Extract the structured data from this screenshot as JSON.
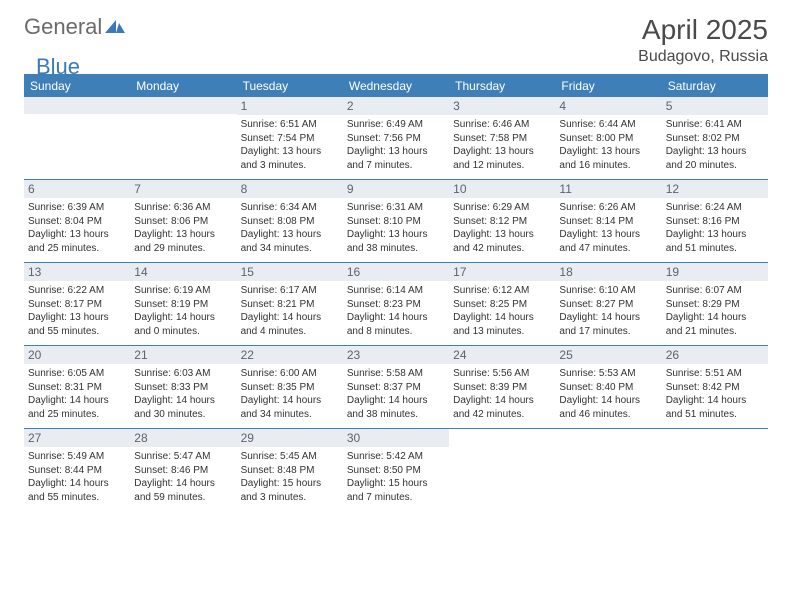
{
  "logo": {
    "general": "General",
    "blue": "Blue",
    "tri_color": "#3a7ab8"
  },
  "title": "April 2025",
  "location": "Budagovo, Russia",
  "colors": {
    "header_bg": "#3f7fb8",
    "daynum_bg": "#e9edf1",
    "rule": "#3f7fb8",
    "text": "#333333",
    "logo_gray": "#6b6b6b",
    "logo_blue": "#3a7ab8"
  },
  "day_names": [
    "Sunday",
    "Monday",
    "Tuesday",
    "Wednesday",
    "Thursday",
    "Friday",
    "Saturday"
  ],
  "weeks": [
    [
      null,
      null,
      {
        "n": "1",
        "sr": "6:51 AM",
        "ss": "7:54 PM",
        "dl": "13 hours and 3 minutes."
      },
      {
        "n": "2",
        "sr": "6:49 AM",
        "ss": "7:56 PM",
        "dl": "13 hours and 7 minutes."
      },
      {
        "n": "3",
        "sr": "6:46 AM",
        "ss": "7:58 PM",
        "dl": "13 hours and 12 minutes."
      },
      {
        "n": "4",
        "sr": "6:44 AM",
        "ss": "8:00 PM",
        "dl": "13 hours and 16 minutes."
      },
      {
        "n": "5",
        "sr": "6:41 AM",
        "ss": "8:02 PM",
        "dl": "13 hours and 20 minutes."
      }
    ],
    [
      {
        "n": "6",
        "sr": "6:39 AM",
        "ss": "8:04 PM",
        "dl": "13 hours and 25 minutes."
      },
      {
        "n": "7",
        "sr": "6:36 AM",
        "ss": "8:06 PM",
        "dl": "13 hours and 29 minutes."
      },
      {
        "n": "8",
        "sr": "6:34 AM",
        "ss": "8:08 PM",
        "dl": "13 hours and 34 minutes."
      },
      {
        "n": "9",
        "sr": "6:31 AM",
        "ss": "8:10 PM",
        "dl": "13 hours and 38 minutes."
      },
      {
        "n": "10",
        "sr": "6:29 AM",
        "ss": "8:12 PM",
        "dl": "13 hours and 42 minutes."
      },
      {
        "n": "11",
        "sr": "6:26 AM",
        "ss": "8:14 PM",
        "dl": "13 hours and 47 minutes."
      },
      {
        "n": "12",
        "sr": "6:24 AM",
        "ss": "8:16 PM",
        "dl": "13 hours and 51 minutes."
      }
    ],
    [
      {
        "n": "13",
        "sr": "6:22 AM",
        "ss": "8:17 PM",
        "dl": "13 hours and 55 minutes."
      },
      {
        "n": "14",
        "sr": "6:19 AM",
        "ss": "8:19 PM",
        "dl": "14 hours and 0 minutes."
      },
      {
        "n": "15",
        "sr": "6:17 AM",
        "ss": "8:21 PM",
        "dl": "14 hours and 4 minutes."
      },
      {
        "n": "16",
        "sr": "6:14 AM",
        "ss": "8:23 PM",
        "dl": "14 hours and 8 minutes."
      },
      {
        "n": "17",
        "sr": "6:12 AM",
        "ss": "8:25 PM",
        "dl": "14 hours and 13 minutes."
      },
      {
        "n": "18",
        "sr": "6:10 AM",
        "ss": "8:27 PM",
        "dl": "14 hours and 17 minutes."
      },
      {
        "n": "19",
        "sr": "6:07 AM",
        "ss": "8:29 PM",
        "dl": "14 hours and 21 minutes."
      }
    ],
    [
      {
        "n": "20",
        "sr": "6:05 AM",
        "ss": "8:31 PM",
        "dl": "14 hours and 25 minutes."
      },
      {
        "n": "21",
        "sr": "6:03 AM",
        "ss": "8:33 PM",
        "dl": "14 hours and 30 minutes."
      },
      {
        "n": "22",
        "sr": "6:00 AM",
        "ss": "8:35 PM",
        "dl": "14 hours and 34 minutes."
      },
      {
        "n": "23",
        "sr": "5:58 AM",
        "ss": "8:37 PM",
        "dl": "14 hours and 38 minutes."
      },
      {
        "n": "24",
        "sr": "5:56 AM",
        "ss": "8:39 PM",
        "dl": "14 hours and 42 minutes."
      },
      {
        "n": "25",
        "sr": "5:53 AM",
        "ss": "8:40 PM",
        "dl": "14 hours and 46 minutes."
      },
      {
        "n": "26",
        "sr": "5:51 AM",
        "ss": "8:42 PM",
        "dl": "14 hours and 51 minutes."
      }
    ],
    [
      {
        "n": "27",
        "sr": "5:49 AM",
        "ss": "8:44 PM",
        "dl": "14 hours and 55 minutes."
      },
      {
        "n": "28",
        "sr": "5:47 AM",
        "ss": "8:46 PM",
        "dl": "14 hours and 59 minutes."
      },
      {
        "n": "29",
        "sr": "5:45 AM",
        "ss": "8:48 PM",
        "dl": "15 hours and 3 minutes."
      },
      {
        "n": "30",
        "sr": "5:42 AM",
        "ss": "8:50 PM",
        "dl": "15 hours and 7 minutes."
      },
      null,
      null,
      null
    ]
  ],
  "labels": {
    "sunrise": "Sunrise: ",
    "sunset": "Sunset: ",
    "daylight": "Daylight: "
  }
}
